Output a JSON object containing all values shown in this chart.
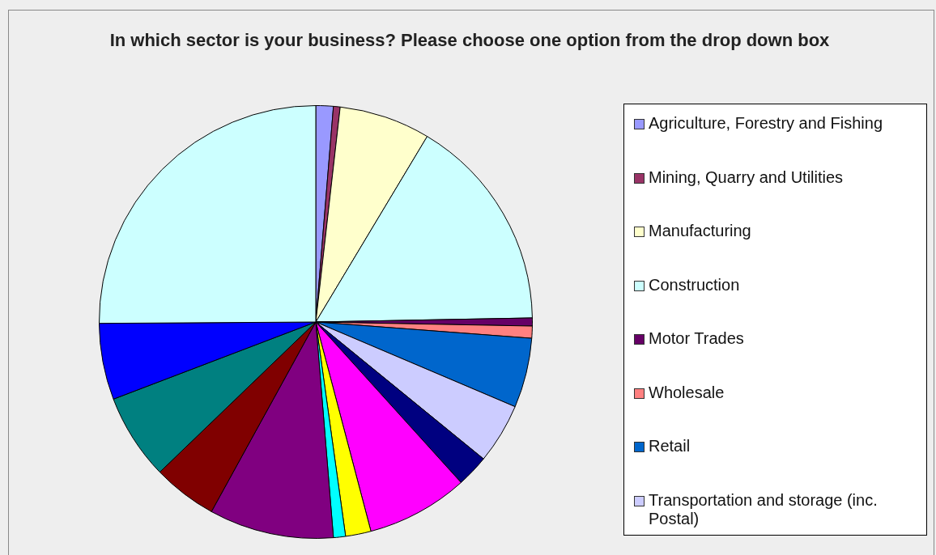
{
  "chart_data": {
    "type": "pie",
    "title": "In which sector is your business? Please choose one option from the drop down box",
    "categories": [
      "Agriculture, Forestry and Fishing",
      "Mining, Quarry and Utilities",
      "Manufacturing",
      "Construction",
      "Motor Trades",
      "Wholesale",
      "Retail",
      "Transportation and storage (inc. Postal)",
      null,
      null,
      null,
      null,
      null,
      null,
      null,
      null,
      null
    ],
    "values": [
      1.3,
      0.5,
      6.8,
      16.1,
      0.6,
      0.9,
      5.2,
      4.5,
      2.4,
      7.6,
      1.9,
      0.9,
      9.3,
      4.8,
      6.4,
      5.7,
      25.1
    ],
    "colors": [
      "#9999ff",
      "#993366",
      "#ffffcc",
      "#ccffff",
      "#660066",
      "#ff8080",
      "#0066cc",
      "#ccccff",
      "#000080",
      "#ff00ff",
      "#ffff00",
      "#00ffff",
      "#800080",
      "#800000",
      "#008080",
      "#0000ff",
      "#ccffff"
    ],
    "legend": "right"
  }
}
